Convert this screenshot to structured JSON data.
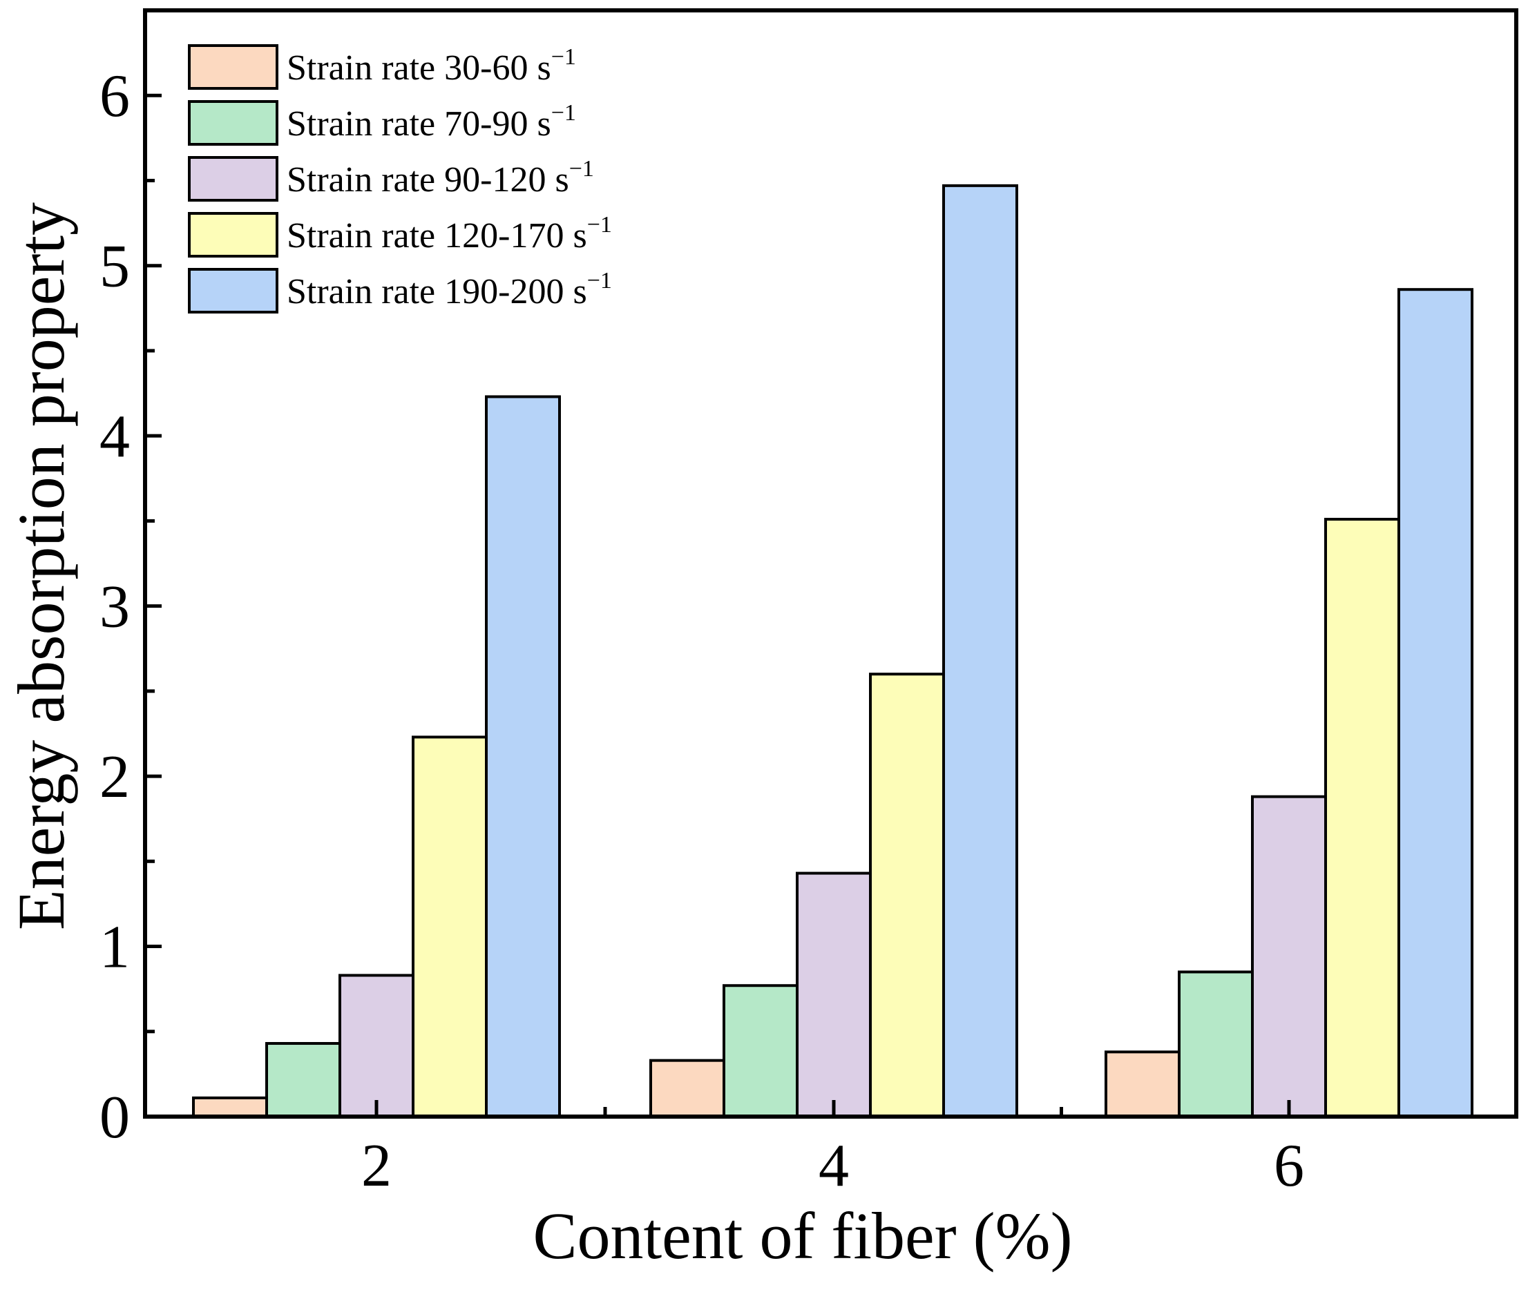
{
  "chart_data": {
    "type": "bar",
    "title": "",
    "xlabel": "Content of fiber (%)",
    "ylabel": "Energy absorption property",
    "categories": [
      "2",
      "4",
      "6"
    ],
    "ylim": [
      0,
      6.5
    ],
    "yticks": [
      "0",
      "1",
      "2",
      "3",
      "4",
      "5",
      "6"
    ],
    "legend_position": "top-left",
    "unit_superscript": "−1",
    "series": [
      {
        "name": "Strain rate 30-60 s",
        "values": [
          0.11,
          0.33,
          0.38
        ],
        "color": "#fcd9c0"
      },
      {
        "name": "Strain rate 70-90 s",
        "values": [
          0.43,
          0.77,
          0.85
        ],
        "color": "#b5e8c8"
      },
      {
        "name": "Strain rate 90-120 s",
        "values": [
          0.83,
          1.43,
          1.88
        ],
        "color": "#dccfe6"
      },
      {
        "name": "Strain rate 120-170 s",
        "values": [
          2.23,
          2.6,
          3.51
        ],
        "color": "#fdfdb8"
      },
      {
        "name": "Strain rate 190-200 s",
        "values": [
          4.23,
          5.47,
          4.86
        ],
        "color": "#b6d3f8"
      }
    ]
  }
}
